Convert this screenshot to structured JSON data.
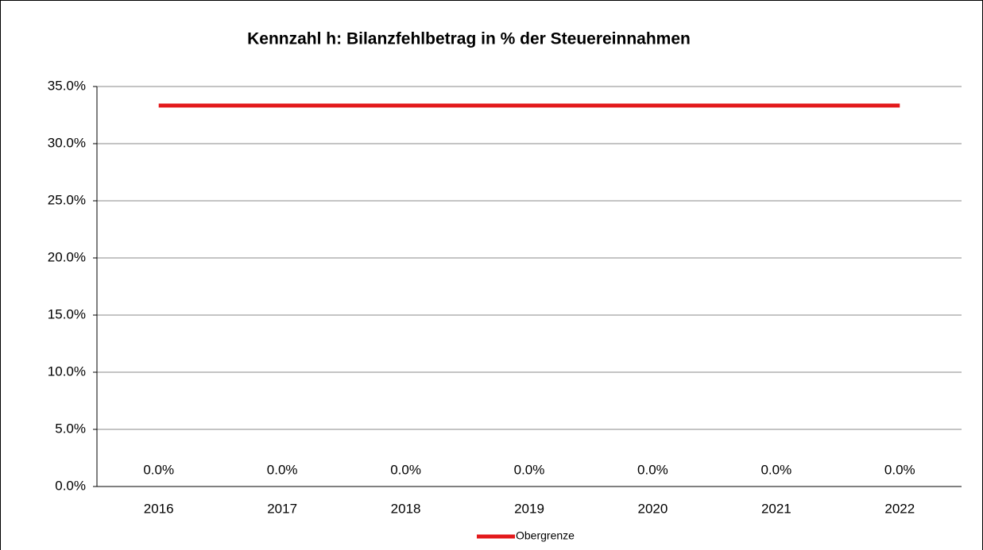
{
  "chart_data": {
    "type": "bar",
    "title": "Kennzahl h: Bilanzfehlbetrag in % der Steuereinnahmen",
    "categories": [
      "2016",
      "2017",
      "2018",
      "2019",
      "2020",
      "2021",
      "2022"
    ],
    "series": [
      {
        "values": [
          0,
          0,
          0,
          0,
          0,
          0,
          0
        ],
        "value_labels": [
          "0.0%",
          "0.0%",
          "0.0%",
          "0.0%",
          "0.0%",
          "0.0%",
          "0.0%"
        ]
      },
      {
        "name": "Obergrenze",
        "type": "line",
        "color": "#e31a1c",
        "values": [
          33.33,
          33.33,
          33.33,
          33.33,
          33.33,
          33.33,
          33.33
        ]
      }
    ],
    "ylim": [
      0,
      35
    ],
    "yticks": [
      {
        "value": 0,
        "label": "0.0%"
      },
      {
        "value": 5,
        "label": "5.0%"
      },
      {
        "value": 10,
        "label": "10.0%"
      },
      {
        "value": 15,
        "label": "15.0%"
      },
      {
        "value": 20,
        "label": "20.0%"
      },
      {
        "value": 25,
        "label": "25.0%"
      },
      {
        "value": 30,
        "label": "30.0%"
      },
      {
        "value": 35,
        "label": "35.0%"
      }
    ],
    "grid": true,
    "legend": "bottom"
  }
}
